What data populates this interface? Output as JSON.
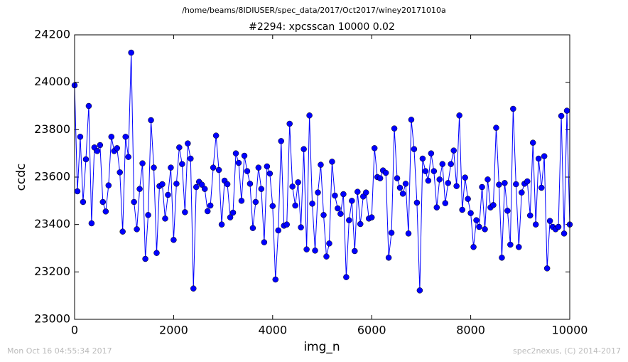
{
  "chart_data": {
    "type": "line",
    "suptitle": "/home/beams/8IDIUSER/spec_data/2017/Oct2017/winey20171010a",
    "title": "#2294: xpcsscan 10000 0.02",
    "xlabel": "img_n",
    "ylabel": "ccdc",
    "footer_left": "Mon Oct 16 04:55:34 2017",
    "footer_right": "spec2nexus, (C) 2014-2017",
    "xlim": [
      0,
      10000
    ],
    "xticks": [
      0,
      2000,
      4000,
      6000,
      8000,
      10000
    ],
    "ylim": [
      23000,
      24200
    ],
    "yticks": [
      23000,
      23200,
      23400,
      23600,
      23800,
      24000,
      24200
    ],
    "marker": "o",
    "x": [
      0,
      57,
      114,
      171,
      229,
      286,
      343,
      400,
      457,
      514,
      571,
      629,
      686,
      743,
      800,
      857,
      914,
      971,
      1029,
      1086,
      1143,
      1200,
      1257,
      1314,
      1371,
      1429,
      1486,
      1543,
      1600,
      1657,
      1714,
      1771,
      1829,
      1886,
      1943,
      2000,
      2057,
      2114,
      2171,
      2229,
      2286,
      2343,
      2400,
      2457,
      2514,
      2571,
      2629,
      2686,
      2743,
      2800,
      2857,
      2914,
      2971,
      3029,
      3086,
      3143,
      3200,
      3257,
      3314,
      3371,
      3429,
      3486,
      3543,
      3600,
      3657,
      3714,
      3771,
      3829,
      3886,
      3943,
      4000,
      4057,
      4114,
      4171,
      4229,
      4286,
      4343,
      4400,
      4457,
      4514,
      4571,
      4629,
      4686,
      4743,
      4800,
      4857,
      4914,
      4971,
      5029,
      5086,
      5143,
      5200,
      5257,
      5314,
      5371,
      5429,
      5486,
      5543,
      5600,
      5657,
      5714,
      5771,
      5829,
      5886,
      5943,
      6000,
      6057,
      6114,
      6171,
      6229,
      6286,
      6343,
      6400,
      6457,
      6514,
      6571,
      6629,
      6686,
      6743,
      6800,
      6857,
      6914,
      6971,
      7029,
      7086,
      7143,
      7200,
      7257,
      7314,
      7371,
      7429,
      7486,
      7543,
      7600,
      7657,
      7714,
      7771,
      7829,
      7886,
      7943,
      8000,
      8057,
      8114,
      8171,
      8229,
      8286,
      8343,
      8400,
      8457,
      8514,
      8571,
      8629,
      8686,
      8743,
      8800,
      8857,
      8914,
      8971,
      9029,
      9086,
      9143,
      9200,
      9257,
      9314,
      9371,
      9429,
      9486,
      9543,
      9600,
      9657,
      9714,
      9771,
      9829,
      9886,
      9943,
      10000
    ],
    "series": [
      {
        "color": "#0000ff",
        "values": [
          23987,
          23540,
          23770,
          23495,
          23675,
          23900,
          23405,
          23725,
          23710,
          23735,
          23495,
          23455,
          23565,
          23770,
          23710,
          23722,
          23620,
          23370,
          23770,
          23685,
          24125,
          23495,
          23380,
          23550,
          23658,
          23255,
          23440,
          23840,
          23640,
          23280,
          23562,
          23570,
          23425,
          23525,
          23640,
          23335,
          23572,
          23725,
          23655,
          23452,
          23742,
          23678,
          23130,
          23558,
          23580,
          23568,
          23550,
          23456,
          23480,
          23640,
          23775,
          23630,
          23400,
          23585,
          23570,
          23430,
          23450,
          23700,
          23660,
          23500,
          23690,
          23625,
          23572,
          23385,
          23495,
          23640,
          23550,
          23325,
          23645,
          23615,
          23478,
          23168,
          23375,
          23752,
          23395,
          23400,
          23825,
          23560,
          23480,
          23578,
          23388,
          23718,
          23295,
          23860,
          23488,
          23290,
          23535,
          23652,
          23440,
          23265,
          23320,
          23665,
          23522,
          23468,
          23445,
          23528,
          23178,
          23418,
          23500,
          23288,
          23538,
          23402,
          23518,
          23535,
          23425,
          23430,
          23722,
          23600,
          23595,
          23628,
          23618,
          23260,
          23365,
          23805,
          23595,
          23555,
          23530,
          23572,
          23362,
          23842,
          23718,
          23492,
          23122,
          23678,
          23625,
          23585,
          23700,
          23625,
          23472,
          23590,
          23655,
          23490,
          23575,
          23655,
          23712,
          23562,
          23860,
          23462,
          23598,
          23508,
          23448,
          23305,
          23418,
          23390,
          23558,
          23380,
          23590,
          23472,
          23482,
          23808,
          23568,
          23260,
          23575,
          23458,
          23315,
          23888,
          23570,
          23305,
          23535,
          23572,
          23582,
          23438,
          23745,
          23400,
          23678,
          23555,
          23688,
          23215,
          23415,
          23390,
          23380,
          23390,
          23858,
          23362,
          23880,
          23400
        ]
      }
    ]
  }
}
